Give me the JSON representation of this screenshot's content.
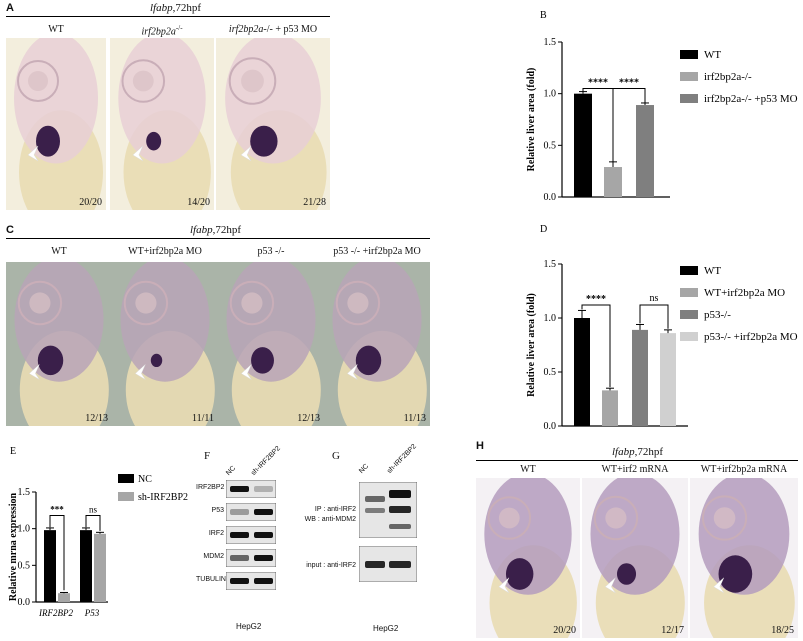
{
  "panelA": {
    "letter": "A",
    "header_gene": "lfabp",
    "header_stage": ",72hpf",
    "columns": [
      {
        "label_pre": "WT",
        "label_ital": "",
        "label_post": "",
        "count": "20/20"
      },
      {
        "label_pre": "",
        "label_ital": "irf2bp2a",
        "label_post": "-/-",
        "count": "14/20"
      },
      {
        "label_pre": "",
        "label_ital": "irf2bp2a",
        "label_post": "-/- + p53 MO",
        "count": "21/28"
      }
    ]
  },
  "panelC": {
    "letter": "C",
    "header_gene": "lfabp",
    "header_stage": ",72hpf",
    "columns": [
      {
        "label": "WT",
        "count": "12/13"
      },
      {
        "label": "WT+irf2bp2a MO",
        "count": "11/11"
      },
      {
        "label": "p53 -/-",
        "count": "12/13"
      },
      {
        "label": "p53 -/- +irf2bp2a MO",
        "count": "11/13"
      }
    ]
  },
  "panelH": {
    "letter": "H",
    "header_gene": "lfabp",
    "header_stage": ",72hpf",
    "columns": [
      {
        "label": "WT",
        "count": "20/20"
      },
      {
        "label": "WT+irf2 mRNA",
        "count": "12/17"
      },
      {
        "label": "WT+irf2bp2a mRNA",
        "count": "18/25"
      }
    ]
  },
  "panelF": {
    "letter": "F",
    "lanes": [
      "NC",
      "sh-IRF2BP2"
    ],
    "rows": [
      "IRF2BP2",
      "P53",
      "IRF2",
      "MDM2",
      "TUBULIN"
    ],
    "cell_line": "HepG2"
  },
  "panelG": {
    "letter": "G",
    "lanes": [
      "NC",
      "sh-IRF2BP2"
    ],
    "blot1_label_a": "IP : anti-IRF2",
    "blot1_label_b": "WB : anti-MDM2",
    "blot2_label": "input : anti-IRF2",
    "cell_line": "HepG2"
  },
  "chart_data": [
    {
      "panel": "B",
      "type": "bar",
      "ylabel": "Relative liver area (fold)",
      "ylim": [
        0,
        1.5
      ],
      "yticks": [
        "0.0",
        "0.5",
        "1.0",
        "1.5"
      ],
      "categories": [
        "WT",
        "irf2bp2a-/-",
        "irf2bp2a-/- +p53 MO"
      ],
      "values": [
        1.0,
        0.29,
        0.89
      ],
      "errors": [
        0.02,
        0.05,
        0.02
      ],
      "colors": [
        "#000000",
        "#a6a6a6",
        "#7f7f7f"
      ],
      "significance": [
        "****",
        "****"
      ],
      "legend": [
        "WT",
        "irf2bp2a-/-",
        "irf2bp2a-/- +p53 MO"
      ]
    },
    {
      "panel": "D",
      "type": "bar",
      "ylabel": "Relative liver area (fold)",
      "ylim": [
        0,
        1.5
      ],
      "yticks": [
        "0.0",
        "0.5",
        "1.0",
        "1.5"
      ],
      "categories": [
        "WT",
        "WT+irf2bp2a MO",
        "p53-/-",
        "p53-/- +irf2bp2a MO"
      ],
      "values": [
        1.0,
        0.33,
        0.89,
        0.86
      ],
      "errors": [
        0.07,
        0.02,
        0.05,
        0.03
      ],
      "colors": [
        "#000000",
        "#a6a6a6",
        "#7f7f7f",
        "#d0d0d0"
      ],
      "significance": [
        "****",
        "ns"
      ],
      "legend": [
        "WT",
        "WT+irf2bp2a MO",
        "p53-/-",
        "p53-/- +irf2bp2a MO"
      ]
    },
    {
      "panel": "E",
      "type": "bar",
      "ylabel": "Relative mrna expression",
      "ylim": [
        0,
        1.5
      ],
      "yticks": [
        "0.0",
        "0.5",
        "1.0",
        "1.5"
      ],
      "categories": [
        "IRF2BP2",
        "P53"
      ],
      "series": [
        {
          "name": "NC",
          "values": [
            0.98,
            0.98
          ],
          "errors": [
            0.03,
            0.03
          ],
          "color": "#000000"
        },
        {
          "name": "sh-IRF2BP2",
          "values": [
            0.12,
            0.93
          ],
          "errors": [
            0.01,
            0.02
          ],
          "color": "#a6a6a6"
        }
      ],
      "significance": [
        "***",
        "ns"
      ]
    }
  ]
}
